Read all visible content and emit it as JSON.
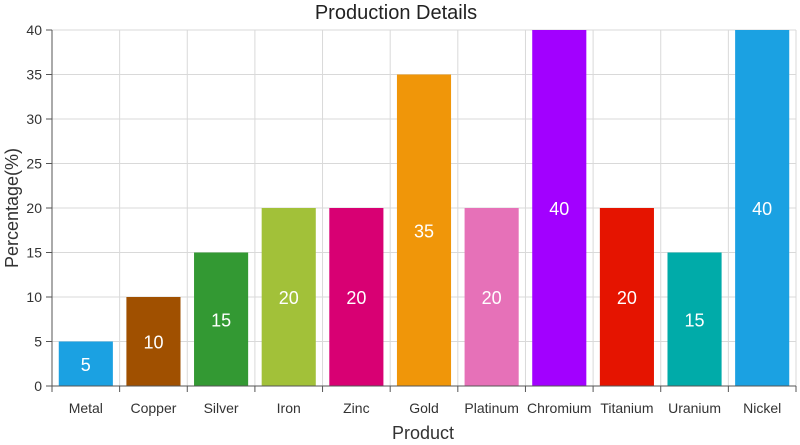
{
  "chart_data": {
    "type": "bar",
    "title": "Production Details",
    "xlabel": "Product",
    "ylabel": "Percentage(%)",
    "categories": [
      "Metal",
      "Copper",
      "Silver",
      "Iron",
      "Zinc",
      "Gold",
      "Platinum",
      "Chromium",
      "Titanium",
      "Uranium",
      "Nickel"
    ],
    "values": [
      5,
      10,
      15,
      20,
      20,
      35,
      20,
      40,
      20,
      15,
      40
    ],
    "colors": [
      "#1BA1E2",
      "#A05000",
      "#339933",
      "#A2C139",
      "#D80073",
      "#F09609",
      "#E671B8",
      "#A200FF",
      "#E51400",
      "#00ABA9",
      "#1BA1E2"
    ],
    "ylim": [
      0,
      40
    ],
    "yticks": [
      0,
      5,
      10,
      15,
      20,
      25,
      30,
      35,
      40
    ],
    "grid": true,
    "legend": "none",
    "data_labels": true
  }
}
